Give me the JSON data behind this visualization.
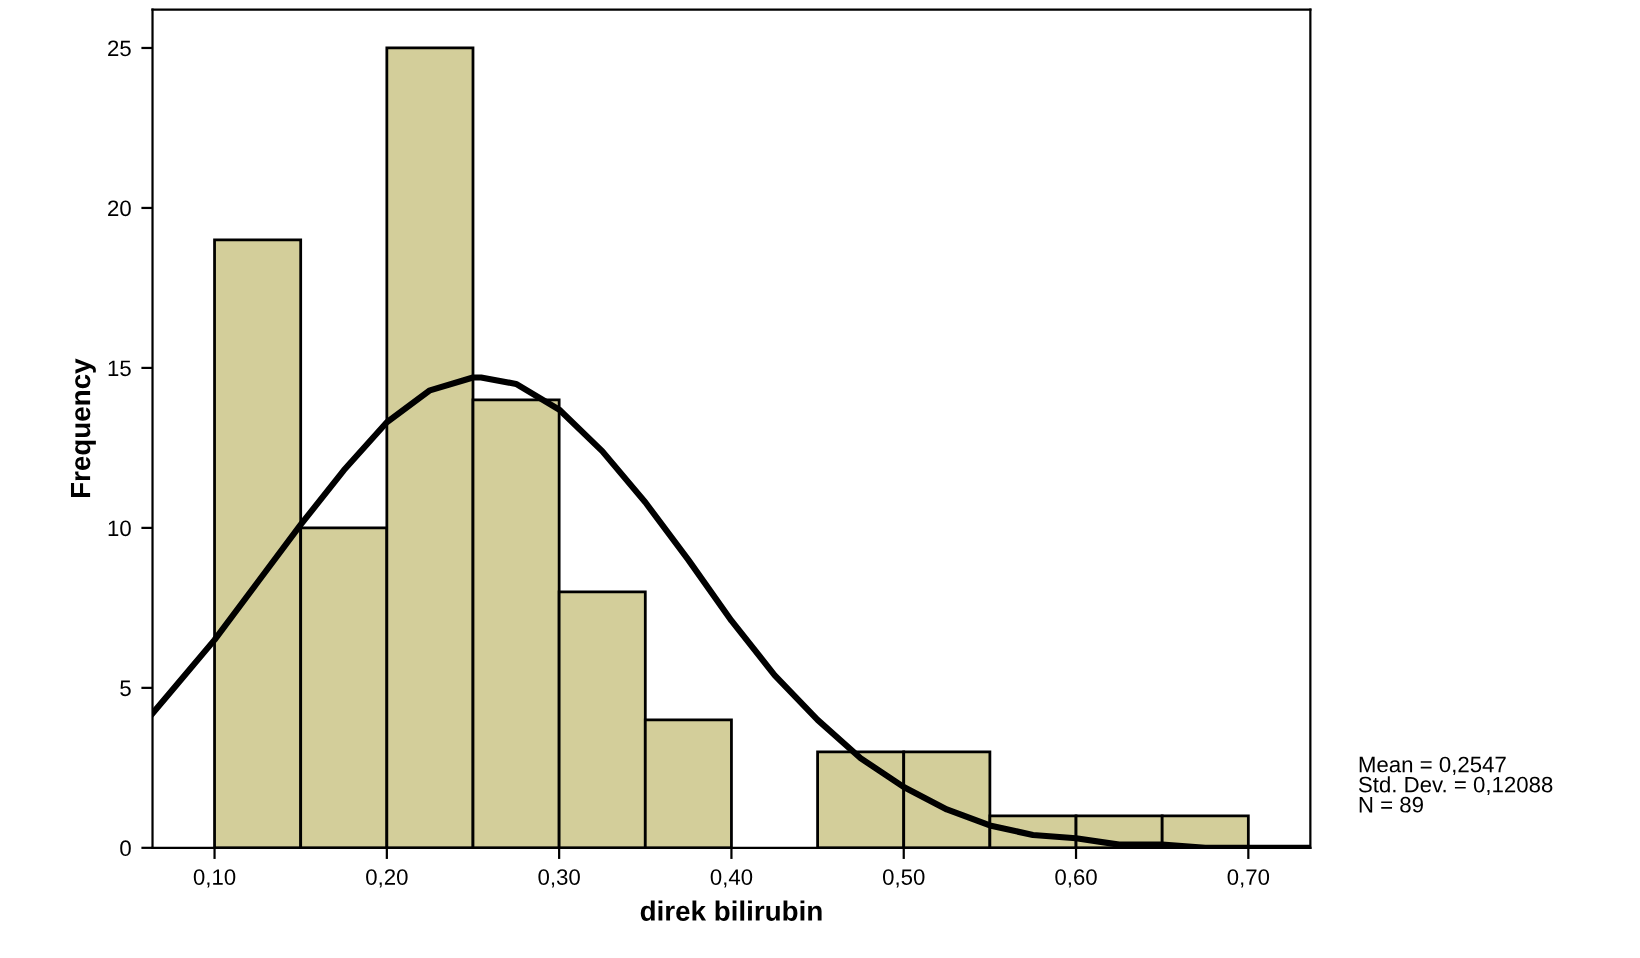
{
  "chart_data": {
    "type": "histogram",
    "xlabel": "direk bilirubin",
    "ylabel": "Frequency",
    "bins": [
      0.1,
      0.15,
      0.2,
      0.25,
      0.3,
      0.35,
      0.4,
      0.45,
      0.5,
      0.55,
      0.6,
      0.65,
      0.7
    ],
    "values": [
      19,
      10,
      25,
      14,
      8,
      4,
      0,
      3,
      3,
      1,
      1,
      1
    ],
    "color": "#d3ce9a",
    "series": [
      {
        "type": "line",
        "color": "#000000",
        "x": [
          0.064,
          0.075,
          0.1,
          0.125,
          0.15,
          0.175,
          0.2,
          0.225,
          0.25,
          0.2547,
          0.275,
          0.3,
          0.325,
          0.35,
          0.375,
          0.4,
          0.425,
          0.45,
          0.475,
          0.5,
          0.525,
          0.55,
          0.575,
          0.6,
          0.625,
          0.65,
          0.675,
          0.7,
          0.736
        ],
        "values": [
          4.2,
          4.9,
          6.5,
          8.3,
          10.1,
          11.8,
          13.3,
          14.3,
          14.7,
          14.7,
          14.5,
          13.7,
          12.4,
          10.8,
          9.0,
          7.1,
          5.4,
          4.0,
          2.8,
          1.9,
          1.2,
          0.7,
          0.4,
          0.3,
          0.1,
          0.1,
          0.0,
          0.0,
          0.0
        ]
      }
    ],
    "xlim": [
      0.064,
      0.736
    ],
    "ylim": [
      0,
      26.2
    ],
    "xticks": [
      {
        "value": 0.1,
        "label": "0,10"
      },
      {
        "value": 0.2,
        "label": "0,20"
      },
      {
        "value": 0.3,
        "label": "0,30"
      },
      {
        "value": 0.4,
        "label": "0,40"
      },
      {
        "value": 0.5,
        "label": "0,50"
      },
      {
        "value": 0.6,
        "label": "0,60"
      },
      {
        "value": 0.7,
        "label": "0,70"
      }
    ],
    "yticks": [
      0,
      5,
      10,
      15,
      20,
      25
    ],
    "grid": false,
    "legend": false,
    "annotations": [
      "Mean = 0,2547",
      "Std. Dev. = 0,12088",
      "N = 89"
    ]
  }
}
